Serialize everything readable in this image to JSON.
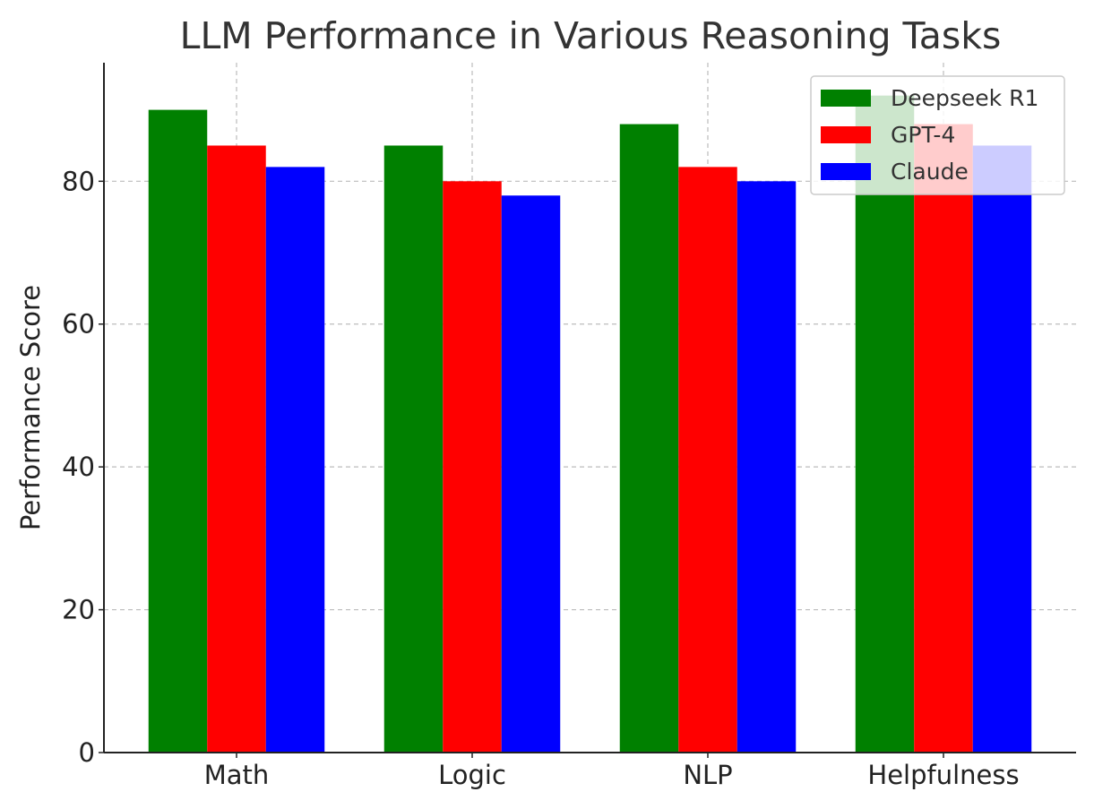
{
  "chart_data": {
    "type": "bar",
    "title": "LLM Performance in Various Reasoning Tasks",
    "xlabel": "",
    "ylabel": "Performance Score",
    "categories": [
      "Math",
      "Logic",
      "NLP",
      "Helpfulness"
    ],
    "series": [
      {
        "name": "Deepseek R1",
        "color": "#008000",
        "values": [
          90,
          85,
          88,
          92
        ]
      },
      {
        "name": "GPT-4",
        "color": "#ff0000",
        "values": [
          85,
          80,
          82,
          88
        ]
      },
      {
        "name": "Claude",
        "color": "#0000ff",
        "values": [
          82,
          78,
          80,
          85
        ]
      }
    ],
    "ylim": [
      0,
      96.6
    ],
    "yticks": [
      0,
      20,
      40,
      60,
      80
    ],
    "grid": true,
    "legend_position": "top-right"
  }
}
